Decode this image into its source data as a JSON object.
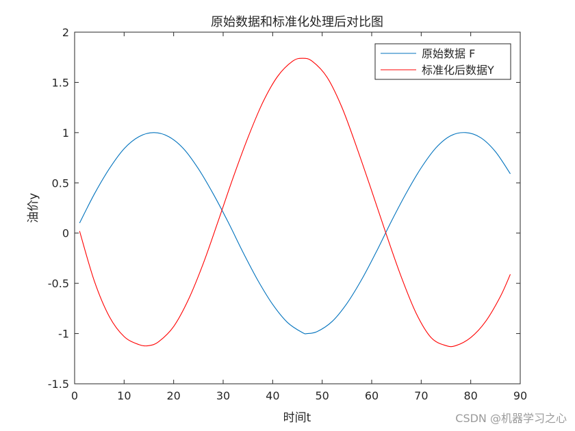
{
  "chart_data": {
    "type": "line",
    "title": "原始数据和标准化处理后对比图",
    "xlabel": "时间t",
    "ylabel": "油价y",
    "xlim": [
      0,
      90
    ],
    "ylim": [
      -1.5,
      2
    ],
    "xticks": [
      0,
      10,
      20,
      30,
      40,
      50,
      60,
      70,
      80,
      90
    ],
    "yticks": [
      -1.5,
      -1,
      -0.5,
      0,
      0.5,
      1,
      1.5,
      2
    ],
    "xtick_labels": [
      "0",
      "10",
      "20",
      "30",
      "40",
      "50",
      "60",
      "70",
      "80",
      "90"
    ],
    "ytick_labels": [
      "-1.5",
      "-1",
      "-0.5",
      "0",
      "0.5",
      "1",
      "1.5",
      "2"
    ],
    "grid": false,
    "legend_position": "top-right",
    "series": [
      {
        "name": "原始数据 F",
        "color": "#0072BD",
        "x": [
          1,
          4,
          7,
          10,
          13,
          16,
          19,
          22,
          25,
          28,
          31,
          34,
          37,
          40,
          43,
          46,
          47,
          49,
          52,
          55,
          58,
          61,
          64,
          67,
          70,
          73,
          76,
          79,
          82,
          85,
          88
        ],
        "y": [
          0.1,
          0.39,
          0.64,
          0.84,
          0.96,
          1.0,
          0.96,
          0.84,
          0.64,
          0.39,
          0.11,
          -0.19,
          -0.47,
          -0.71,
          -0.89,
          -0.99,
          -1.0,
          -0.98,
          -0.88,
          -0.7,
          -0.46,
          -0.18,
          0.12,
          0.4,
          0.65,
          0.85,
          0.97,
          1.0,
          0.95,
          0.81,
          0.59
        ]
      },
      {
        "name": "标准化后数据Y",
        "color": "#FF0000",
        "x": [
          1,
          4,
          7,
          10,
          13,
          15,
          17,
          20,
          23,
          26,
          29,
          32,
          35,
          38,
          41,
          44,
          46,
          48,
          51,
          54,
          57,
          60,
          63,
          66,
          69,
          72,
          75,
          77,
          80,
          83,
          86,
          88
        ],
        "y": [
          0.02,
          -0.48,
          -0.83,
          -1.03,
          -1.11,
          -1.12,
          -1.08,
          -0.93,
          -0.66,
          -0.3,
          0.12,
          0.55,
          0.95,
          1.3,
          1.56,
          1.71,
          1.74,
          1.71,
          1.55,
          1.25,
          0.85,
          0.42,
          -0.02,
          -0.44,
          -0.8,
          -1.04,
          -1.12,
          -1.12,
          -1.04,
          -0.88,
          -0.63,
          -0.41
        ]
      }
    ]
  },
  "watermark": "CSDN @机器学习之心"
}
